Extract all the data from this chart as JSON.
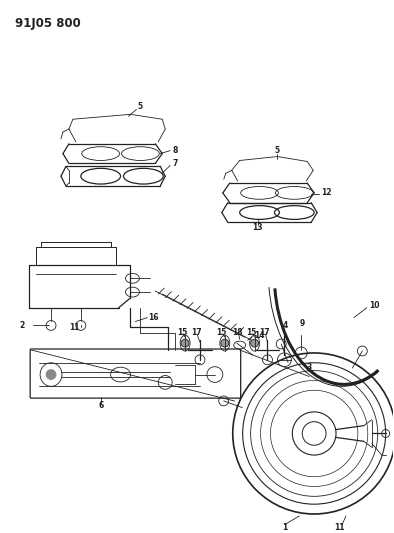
{
  "title": "91J05 800",
  "bg": "#ffffff",
  "lc": "#222222",
  "fig_w": 3.94,
  "fig_h": 5.33,
  "dpi": 100,
  "lw_thin": 0.6,
  "lw_med": 0.9,
  "lw_thick": 1.5,
  "fs_label": 5.5,
  "fs_title": 8.5
}
